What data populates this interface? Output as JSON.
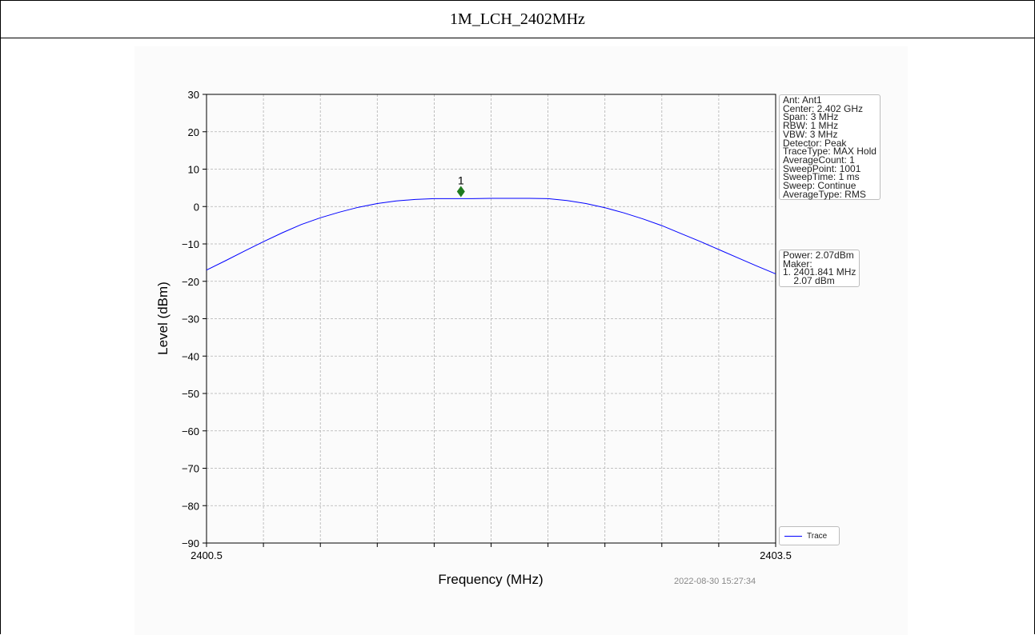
{
  "page_title": "1M_LCH_2402MHz",
  "chart_data": {
    "type": "line",
    "xlabel": "Frequency (MHz)",
    "ylabel": "Level (dBm)",
    "xlim": [
      2400.5,
      2403.5
    ],
    "ylim": [
      -90,
      30
    ],
    "x_tick_labels": [
      "2400.5",
      "2403.5"
    ],
    "y_ticks": [
      30,
      20,
      10,
      0,
      -10,
      -20,
      -30,
      -40,
      -50,
      -60,
      -70,
      -80,
      -90
    ],
    "y_tick_labels": [
      "30",
      "20",
      "10",
      "0",
      "−10",
      "−20",
      "−30",
      "−40",
      "−50",
      "−60",
      "−70",
      "−80",
      "−90"
    ],
    "grid": true,
    "legend_placement": "bottom-right",
    "series": [
      {
        "name": "Trace",
        "color": "#0000ff",
        "x": [
          2400.5,
          2400.6,
          2400.7,
          2400.8,
          2400.9,
          2401.0,
          2401.1,
          2401.2,
          2401.3,
          2401.4,
          2401.5,
          2401.6,
          2401.7,
          2401.8,
          2401.9,
          2402.0,
          2402.1,
          2402.2,
          2402.3,
          2402.4,
          2402.5,
          2402.6,
          2402.7,
          2402.8,
          2402.9,
          2403.0,
          2403.1,
          2403.2,
          2403.3,
          2403.4,
          2403.5
        ],
        "y": [
          -17.0,
          -14.5,
          -11.9,
          -9.4,
          -7.0,
          -4.8,
          -3.0,
          -1.5,
          -0.2,
          0.8,
          1.5,
          1.9,
          2.1,
          2.1,
          2.1,
          2.2,
          2.2,
          2.2,
          2.1,
          1.6,
          0.8,
          -0.3,
          -1.7,
          -3.3,
          -5.1,
          -7.2,
          -9.3,
          -11.5,
          -13.7,
          -15.9,
          -18.0
        ]
      }
    ],
    "marker": {
      "label": "1",
      "x": 2401.841,
      "y": 4.0,
      "color": "#1f7a1f"
    }
  },
  "settings_lines": [
    "Ant: Ant1",
    "Center: 2.402 GHz",
    "Span: 3 MHz",
    "RBW: 1 MHz",
    "VBW: 3 MHz",
    "Detector: Peak",
    "TraceType: MAX Hold",
    "AverageCount: 1",
    "SweepPoint: 1001",
    "SweepTime: 1 ms",
    "Sweep: Continue",
    "AverageType: RMS"
  ],
  "marker_lines": [
    "Power: 2.07dBm",
    "Maker:",
    "1. 2401.841 MHz",
    "    2.07 dBm"
  ],
  "legend_label": "Trace",
  "timestamp": "2022-08-30 15:27:34"
}
